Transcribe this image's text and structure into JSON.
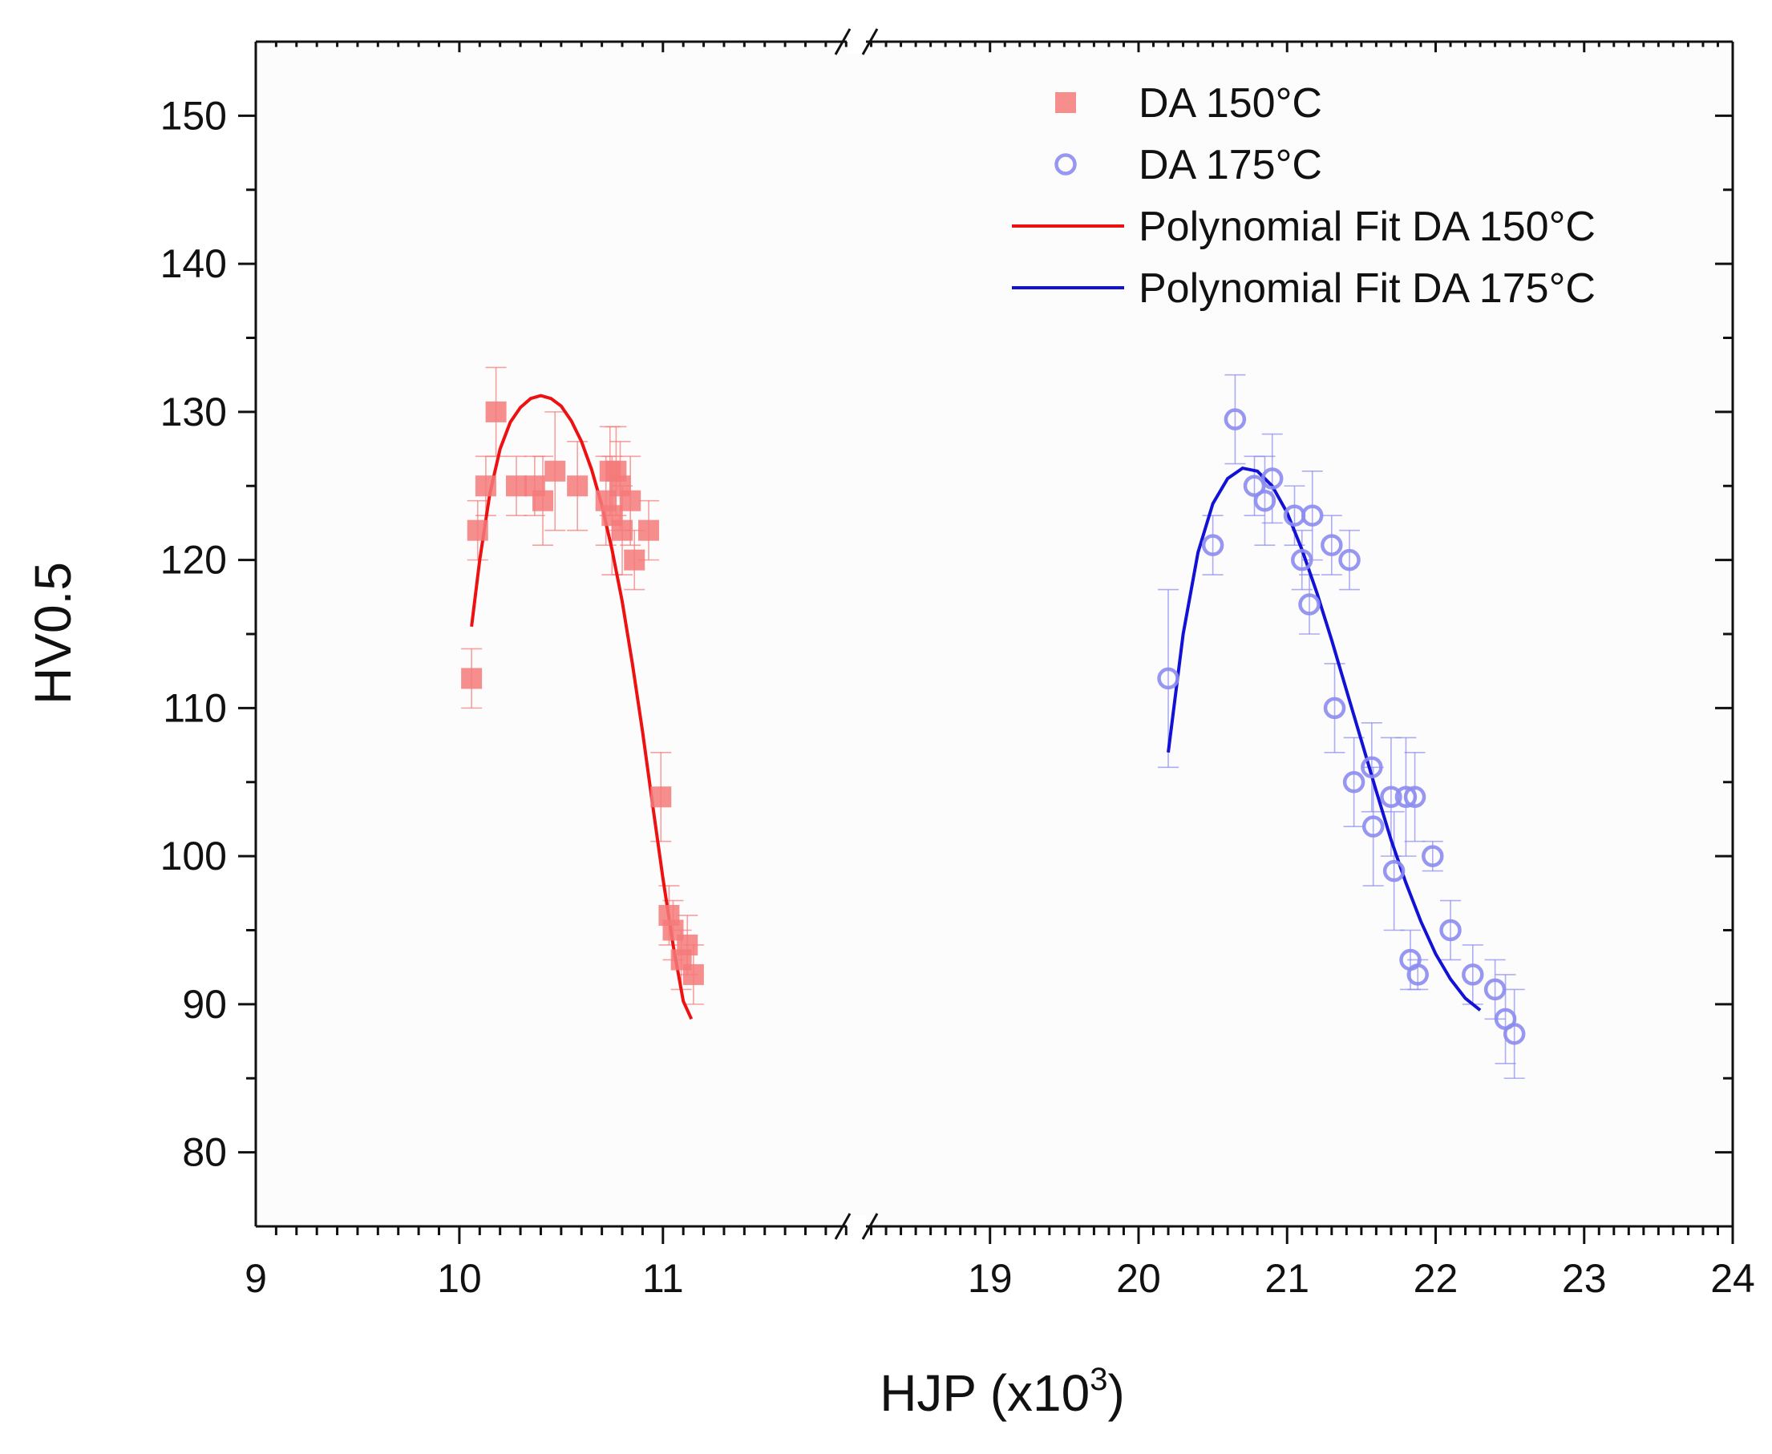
{
  "chart_data": {
    "type": "scatter",
    "xlabel_main": "HJP (x10",
    "xlabel_sup": "3",
    "xlabel_close": ")",
    "ylabel": "HV0.5",
    "x_segments": [
      {
        "range": [
          9,
          11.95
        ],
        "ticks": [
          9,
          10,
          11
        ]
      },
      {
        "range": [
          18.1,
          24
        ],
        "ticks": [
          19,
          20,
          21,
          22,
          23,
          24
        ]
      }
    ],
    "ylim": [
      75,
      155
    ],
    "yticks": [
      80,
      90,
      100,
      110,
      120,
      130,
      140,
      150
    ],
    "xtick_labels": [
      "9",
      "10",
      "11",
      "19",
      "20",
      "21",
      "22",
      "23",
      "24"
    ],
    "ytick_labels": [
      "80",
      "90",
      "100",
      "110",
      "120",
      "130",
      "140",
      "150"
    ],
    "series": [
      {
        "name": "DA 150°C",
        "marker": "square",
        "color": "#f47a7a",
        "points": [
          [
            10.06,
            112,
            2
          ],
          [
            10.09,
            122,
            2
          ],
          [
            10.13,
            125,
            2
          ],
          [
            10.18,
            130,
            3
          ],
          [
            10.28,
            125,
            2
          ],
          [
            10.37,
            125,
            2
          ],
          [
            10.41,
            124,
            3
          ],
          [
            10.47,
            126,
            4
          ],
          [
            10.58,
            125,
            3
          ],
          [
            10.72,
            124,
            3
          ],
          [
            10.74,
            126,
            3
          ],
          [
            10.75,
            123,
            4
          ],
          [
            10.77,
            126,
            3
          ],
          [
            10.79,
            125,
            3
          ],
          [
            10.8,
            122,
            3
          ],
          [
            10.84,
            124,
            3
          ],
          [
            10.86,
            120,
            2
          ],
          [
            10.93,
            122,
            2
          ],
          [
            10.99,
            104,
            3
          ],
          [
            11.03,
            96,
            2
          ],
          [
            11.05,
            95,
            2
          ],
          [
            11.09,
            93,
            2
          ],
          [
            11.12,
            94,
            2
          ],
          [
            11.15,
            92,
            2
          ]
        ]
      },
      {
        "name": "DA 175°C",
        "marker": "circle-open",
        "color": "#8c8cf0",
        "points": [
          [
            20.2,
            112,
            6
          ],
          [
            20.5,
            121,
            2
          ],
          [
            20.65,
            129.5,
            3
          ],
          [
            20.78,
            125,
            2
          ],
          [
            20.85,
            124,
            3
          ],
          [
            20.9,
            125.5,
            3
          ],
          [
            21.05,
            123,
            2
          ],
          [
            21.1,
            120,
            2
          ],
          [
            21.15,
            117,
            2
          ],
          [
            21.17,
            123,
            3
          ],
          [
            21.3,
            121,
            2
          ],
          [
            21.32,
            110,
            3
          ],
          [
            21.42,
            120,
            2
          ],
          [
            21.45,
            105,
            3
          ],
          [
            21.57,
            106,
            3
          ],
          [
            21.58,
            102,
            4
          ],
          [
            21.7,
            104,
            4
          ],
          [
            21.72,
            99,
            4
          ],
          [
            21.8,
            104,
            4
          ],
          [
            21.83,
            93,
            2
          ],
          [
            21.86,
            104,
            3
          ],
          [
            21.88,
            92,
            1
          ],
          [
            21.98,
            100,
            1
          ],
          [
            22.1,
            95,
            2
          ],
          [
            22.25,
            92,
            2
          ],
          [
            22.4,
            91,
            2
          ],
          [
            22.47,
            89,
            3
          ],
          [
            22.53,
            88,
            3
          ]
        ]
      }
    ],
    "fits": [
      {
        "name": "Polynomial Fit DA 150°C",
        "color": "#ee1111",
        "points": [
          [
            10.06,
            115.5
          ],
          [
            10.1,
            120
          ],
          [
            10.15,
            124.5
          ],
          [
            10.2,
            127.5
          ],
          [
            10.25,
            129.3
          ],
          [
            10.3,
            130.3
          ],
          [
            10.35,
            130.9
          ],
          [
            10.4,
            131.1
          ],
          [
            10.45,
            130.9
          ],
          [
            10.5,
            130.4
          ],
          [
            10.55,
            129.4
          ],
          [
            10.6,
            128
          ],
          [
            10.65,
            126.1
          ],
          [
            10.7,
            123.7
          ],
          [
            10.75,
            120.7
          ],
          [
            10.8,
            117.2
          ],
          [
            10.85,
            113
          ],
          [
            10.9,
            108.4
          ],
          [
            10.95,
            103.4
          ],
          [
            11,
            98.5
          ],
          [
            11.05,
            94
          ],
          [
            11.1,
            90.2
          ],
          [
            11.14,
            89
          ]
        ]
      },
      {
        "name": "Polynomial Fit DA 175°C",
        "color": "#1212d6",
        "points": [
          [
            20.2,
            107
          ],
          [
            20.3,
            115
          ],
          [
            20.4,
            120.5
          ],
          [
            20.5,
            123.8
          ],
          [
            20.6,
            125.5
          ],
          [
            20.7,
            126.2
          ],
          [
            20.8,
            126
          ],
          [
            20.9,
            125
          ],
          [
            21,
            123.2
          ],
          [
            21.1,
            120.7
          ],
          [
            21.2,
            117.8
          ],
          [
            21.3,
            114.6
          ],
          [
            21.4,
            111.2
          ],
          [
            21.5,
            107.8
          ],
          [
            21.6,
            104.4
          ],
          [
            21.7,
            101.1
          ],
          [
            21.8,
            98.2
          ],
          [
            21.9,
            95.6
          ],
          [
            22,
            93.4
          ],
          [
            22.1,
            91.7
          ],
          [
            22.2,
            90.4
          ],
          [
            22.3,
            89.6
          ]
        ]
      }
    ],
    "legend": {
      "position": "top-right",
      "entries": [
        "DA 150°C",
        "DA 175°C",
        "Polynomial Fit DA 150°C",
        "Polynomial Fit DA 175°C"
      ]
    }
  }
}
